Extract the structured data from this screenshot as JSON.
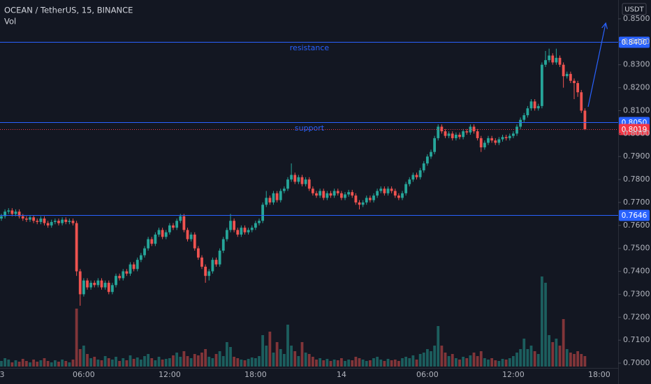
{
  "header": {
    "symbol": "OCEAN / TetherUS, 15, BINANCE",
    "vol_label": "Vol"
  },
  "chart_data": {
    "type": "candlestick",
    "currency": "USDT",
    "up_color": "#26a69a",
    "down_color": "#ef5350",
    "level_color": "#2962ff",
    "last_color": "#f23645",
    "ylim": [
      0.6979,
      0.8582
    ],
    "yticks": [
      {
        "value": 0.85,
        "label": "0.8500"
      },
      {
        "value": 0.84,
        "label": "0.8400"
      },
      {
        "value": 0.83,
        "label": "0.8300"
      },
      {
        "value": 0.82,
        "label": "0.8200"
      },
      {
        "value": 0.81,
        "label": "0.8100"
      },
      {
        "value": 0.8,
        "label": "0.8000"
      },
      {
        "value": 0.79,
        "label": "0.7900"
      },
      {
        "value": 0.78,
        "label": "0.7800"
      },
      {
        "value": 0.77,
        "label": "0.7700"
      },
      {
        "value": 0.76,
        "label": "0.7600"
      },
      {
        "value": 0.75,
        "label": "0.7500"
      },
      {
        "value": 0.74,
        "label": "0.7400"
      },
      {
        "value": 0.73,
        "label": "0.7300"
      },
      {
        "value": 0.72,
        "label": "0.7200"
      },
      {
        "value": 0.71,
        "label": "0.7100"
      },
      {
        "value": 0.7,
        "label": "0.7000"
      }
    ],
    "xticks": [
      {
        "value": -1,
        "label": "3"
      },
      {
        "value": 23,
        "label": "06:00"
      },
      {
        "value": 47,
        "label": "12:00"
      },
      {
        "value": 71,
        "label": "18:00"
      },
      {
        "value": 95,
        "label": "14"
      },
      {
        "value": 119,
        "label": "06:00"
      },
      {
        "value": 143,
        "label": "12:00"
      },
      {
        "value": 167,
        "label": "18:00"
      }
    ],
    "levels": [
      {
        "name": "resistance",
        "value": 0.84,
        "label": "0.8400"
      },
      {
        "name": "support",
        "value": 0.805,
        "label": "0.8050"
      },
      {
        "value": 0.7646,
        "label": "0.7646"
      }
    ],
    "last_price": {
      "value": 0.8019,
      "label": "0.8019"
    },
    "open": [
      0.763,
      0.764,
      0.766,
      0.7665,
      0.765,
      0.766,
      0.764,
      0.763,
      0.7625,
      0.7635,
      0.762,
      0.7615,
      0.763,
      0.761,
      0.76,
      0.7615,
      0.762,
      0.761,
      0.7625,
      0.7615,
      0.762,
      0.761,
      0.74,
      0.73,
      0.736,
      0.733,
      0.735,
      0.734,
      0.736,
      0.733,
      0.735,
      0.731,
      0.734,
      0.738,
      0.737,
      0.74,
      0.739,
      0.743,
      0.741,
      0.745,
      0.747,
      0.75,
      0.754,
      0.752,
      0.756,
      0.758,
      0.755,
      0.757,
      0.76,
      0.759,
      0.762,
      0.764,
      0.758,
      0.754,
      0.756,
      0.75,
      0.746,
      0.742,
      0.738,
      0.74,
      0.745,
      0.743,
      0.749,
      0.754,
      0.758,
      0.762,
      0.758,
      0.756,
      0.759,
      0.757,
      0.758,
      0.759,
      0.761,
      0.762,
      0.769,
      0.772,
      0.77,
      0.774,
      0.771,
      0.775,
      0.776,
      0.78,
      0.782,
      0.779,
      0.781,
      0.778,
      0.78,
      0.776,
      0.774,
      0.773,
      0.775,
      0.772,
      0.774,
      0.773,
      0.775,
      0.774,
      0.772,
      0.7735,
      0.7745,
      0.773,
      0.77,
      0.769,
      0.77,
      0.772,
      0.771,
      0.773,
      0.775,
      0.776,
      0.774,
      0.776,
      0.775,
      0.773,
      0.772,
      0.774,
      0.778,
      0.78,
      0.782,
      0.781,
      0.784,
      0.787,
      0.79,
      0.792,
      0.798,
      0.803,
      0.801,
      0.799,
      0.8,
      0.798,
      0.7995,
      0.7985,
      0.801,
      0.8005,
      0.803,
      0.801,
      0.798,
      0.794,
      0.796,
      0.798,
      0.797,
      0.796,
      0.7975,
      0.7985,
      0.798,
      0.799,
      0.8,
      0.803,
      0.806,
      0.808,
      0.811,
      0.814,
      0.811,
      0.812,
      0.83,
      0.832,
      0.834,
      0.831,
      0.833,
      0.83,
      0.825,
      0.826,
      0.823,
      0.822,
      0.818,
      0.81
    ],
    "high": [
      0.765,
      0.767,
      0.7675,
      0.7675,
      0.767,
      0.767,
      0.765,
      0.764,
      0.7645,
      0.7645,
      0.763,
      0.764,
      0.764,
      0.762,
      0.7625,
      0.763,
      0.763,
      0.7635,
      0.7635,
      0.763,
      0.763,
      0.762,
      0.741,
      0.737,
      0.737,
      0.736,
      0.736,
      0.737,
      0.737,
      0.736,
      0.736,
      0.735,
      0.739,
      0.739,
      0.741,
      0.741,
      0.744,
      0.744,
      0.746,
      0.748,
      0.751,
      0.755,
      0.755,
      0.757,
      0.759,
      0.759,
      0.758,
      0.761,
      0.761,
      0.763,
      0.765,
      0.765,
      0.759,
      0.757,
      0.757,
      0.751,
      0.747,
      0.743,
      0.741,
      0.746,
      0.746,
      0.75,
      0.755,
      0.759,
      0.765,
      0.763,
      0.759,
      0.76,
      0.76,
      0.759,
      0.76,
      0.762,
      0.763,
      0.77,
      0.775,
      0.773,
      0.775,
      0.775,
      0.776,
      0.777,
      0.781,
      0.787,
      0.783,
      0.782,
      0.782,
      0.781,
      0.781,
      0.777,
      0.775,
      0.776,
      0.776,
      0.775,
      0.775,
      0.776,
      0.776,
      0.775,
      0.7745,
      0.7755,
      0.7755,
      0.774,
      0.771,
      0.771,
      0.773,
      0.773,
      0.774,
      0.776,
      0.777,
      0.777,
      0.777,
      0.777,
      0.776,
      0.774,
      0.775,
      0.779,
      0.781,
      0.783,
      0.783,
      0.785,
      0.788,
      0.791,
      0.793,
      0.799,
      0.804,
      0.804,
      0.802,
      0.801,
      0.801,
      0.8005,
      0.8005,
      0.802,
      0.802,
      0.804,
      0.804,
      0.802,
      0.799,
      0.797,
      0.799,
      0.799,
      0.798,
      0.7985,
      0.7995,
      0.7995,
      0.8,
      0.801,
      0.804,
      0.807,
      0.809,
      0.812,
      0.815,
      0.815,
      0.813,
      0.831,
      0.836,
      0.837,
      0.835,
      0.837,
      0.834,
      0.831,
      0.827,
      0.827,
      0.824,
      0.823,
      0.819,
      0.811
    ],
    "low": [
      0.762,
      0.763,
      0.765,
      0.764,
      0.764,
      0.763,
      0.762,
      0.7615,
      0.7615,
      0.761,
      0.7605,
      0.7605,
      0.76,
      0.759,
      0.759,
      0.7605,
      0.76,
      0.76,
      0.7605,
      0.7605,
      0.76,
      0.738,
      0.725,
      0.729,
      0.732,
      0.732,
      0.733,
      0.733,
      0.732,
      0.732,
      0.73,
      0.73,
      0.733,
      0.736,
      0.736,
      0.738,
      0.738,
      0.74,
      0.74,
      0.744,
      0.746,
      0.749,
      0.751,
      0.751,
      0.755,
      0.754,
      0.754,
      0.756,
      0.758,
      0.758,
      0.761,
      0.757,
      0.753,
      0.753,
      0.749,
      0.745,
      0.741,
      0.735,
      0.736,
      0.739,
      0.742,
      0.742,
      0.748,
      0.753,
      0.757,
      0.757,
      0.755,
      0.755,
      0.756,
      0.756,
      0.757,
      0.758,
      0.76,
      0.761,
      0.768,
      0.769,
      0.769,
      0.77,
      0.77,
      0.774,
      0.775,
      0.779,
      0.778,
      0.778,
      0.777,
      0.777,
      0.775,
      0.773,
      0.772,
      0.772,
      0.771,
      0.771,
      0.772,
      0.772,
      0.773,
      0.771,
      0.771,
      0.7725,
      0.772,
      0.769,
      0.767,
      0.768,
      0.769,
      0.77,
      0.77,
      0.772,
      0.774,
      0.773,
      0.773,
      0.774,
      0.772,
      0.771,
      0.771,
      0.773,
      0.777,
      0.779,
      0.78,
      0.78,
      0.783,
      0.786,
      0.789,
      0.791,
      0.797,
      0.8,
      0.798,
      0.798,
      0.797,
      0.797,
      0.7975,
      0.7975,
      0.7995,
      0.7995,
      0.8,
      0.797,
      0.792,
      0.793,
      0.795,
      0.796,
      0.795,
      0.795,
      0.7965,
      0.797,
      0.797,
      0.798,
      0.799,
      0.802,
      0.805,
      0.807,
      0.81,
      0.81,
      0.81,
      0.811,
      0.829,
      0.831,
      0.83,
      0.83,
      0.829,
      0.82,
      0.824,
      0.822,
      0.815,
      0.816,
      0.809,
      0.8015
    ],
    "close": [
      0.764,
      0.766,
      0.7665,
      0.765,
      0.766,
      0.764,
      0.763,
      0.7625,
      0.7635,
      0.762,
      0.7615,
      0.763,
      0.761,
      0.76,
      0.7615,
      0.762,
      0.761,
      0.7625,
      0.7615,
      0.762,
      0.761,
      0.74,
      0.73,
      0.736,
      0.733,
      0.735,
      0.734,
      0.736,
      0.733,
      0.735,
      0.731,
      0.734,
      0.738,
      0.737,
      0.74,
      0.739,
      0.743,
      0.741,
      0.745,
      0.747,
      0.75,
      0.754,
      0.752,
      0.756,
      0.758,
      0.755,
      0.757,
      0.76,
      0.759,
      0.762,
      0.764,
      0.758,
      0.754,
      0.756,
      0.75,
      0.746,
      0.742,
      0.738,
      0.74,
      0.745,
      0.743,
      0.749,
      0.754,
      0.758,
      0.762,
      0.758,
      0.756,
      0.759,
      0.757,
      0.758,
      0.759,
      0.761,
      0.762,
      0.769,
      0.772,
      0.77,
      0.774,
      0.771,
      0.775,
      0.776,
      0.78,
      0.782,
      0.779,
      0.781,
      0.778,
      0.78,
      0.776,
      0.774,
      0.773,
      0.775,
      0.772,
      0.774,
      0.773,
      0.775,
      0.774,
      0.772,
      0.7735,
      0.7745,
      0.773,
      0.77,
      0.769,
      0.77,
      0.772,
      0.771,
      0.773,
      0.775,
      0.776,
      0.774,
      0.776,
      0.775,
      0.773,
      0.772,
      0.774,
      0.778,
      0.78,
      0.782,
      0.781,
      0.784,
      0.787,
      0.79,
      0.792,
      0.798,
      0.803,
      0.801,
      0.799,
      0.8,
      0.798,
      0.7995,
      0.7985,
      0.801,
      0.8005,
      0.803,
      0.801,
      0.798,
      0.794,
      0.796,
      0.798,
      0.797,
      0.796,
      0.7975,
      0.7985,
      0.798,
      0.799,
      0.8,
      0.803,
      0.806,
      0.808,
      0.811,
      0.814,
      0.811,
      0.812,
      0.83,
      0.832,
      0.834,
      0.831,
      0.833,
      0.83,
      0.825,
      0.826,
      0.823,
      0.822,
      0.818,
      0.81,
      0.8019
    ],
    "volume": [
      8,
      12,
      10,
      6,
      9,
      7,
      11,
      8,
      6,
      10,
      7,
      9,
      12,
      8,
      6,
      9,
      7,
      10,
      8,
      6,
      10,
      83,
      25,
      30,
      18,
      12,
      14,
      10,
      9,
      15,
      12,
      10,
      14,
      8,
      12,
      9,
      16,
      11,
      13,
      10,
      15,
      18,
      12,
      9,
      14,
      10,
      11,
      12,
      16,
      20,
      14,
      22,
      15,
      12,
      18,
      16,
      20,
      25,
      14,
      12,
      18,
      22,
      15,
      35,
      28,
      14,
      12,
      10,
      9,
      11,
      13,
      12,
      15,
      45,
      30,
      50,
      20,
      35,
      25,
      18,
      60,
      30,
      22,
      15,
      35,
      20,
      18,
      14,
      10,
      12,
      9,
      11,
      8,
      10,
      9,
      12,
      8,
      10,
      9,
      14,
      12,
      10,
      8,
      9,
      12,
      14,
      10,
      8,
      11,
      9,
      10,
      8,
      12,
      14,
      12,
      16,
      10,
      18,
      20,
      25,
      22,
      30,
      58,
      30,
      20,
      15,
      18,
      12,
      10,
      14,
      12,
      16,
      20,
      15,
      22,
      12,
      10,
      12,
      9,
      8,
      11,
      10,
      12,
      15,
      20,
      25,
      40,
      25,
      30,
      22,
      18,
      129,
      120,
      45,
      35,
      40,
      30,
      68,
      25,
      20,
      18,
      22,
      18,
      15
    ]
  }
}
